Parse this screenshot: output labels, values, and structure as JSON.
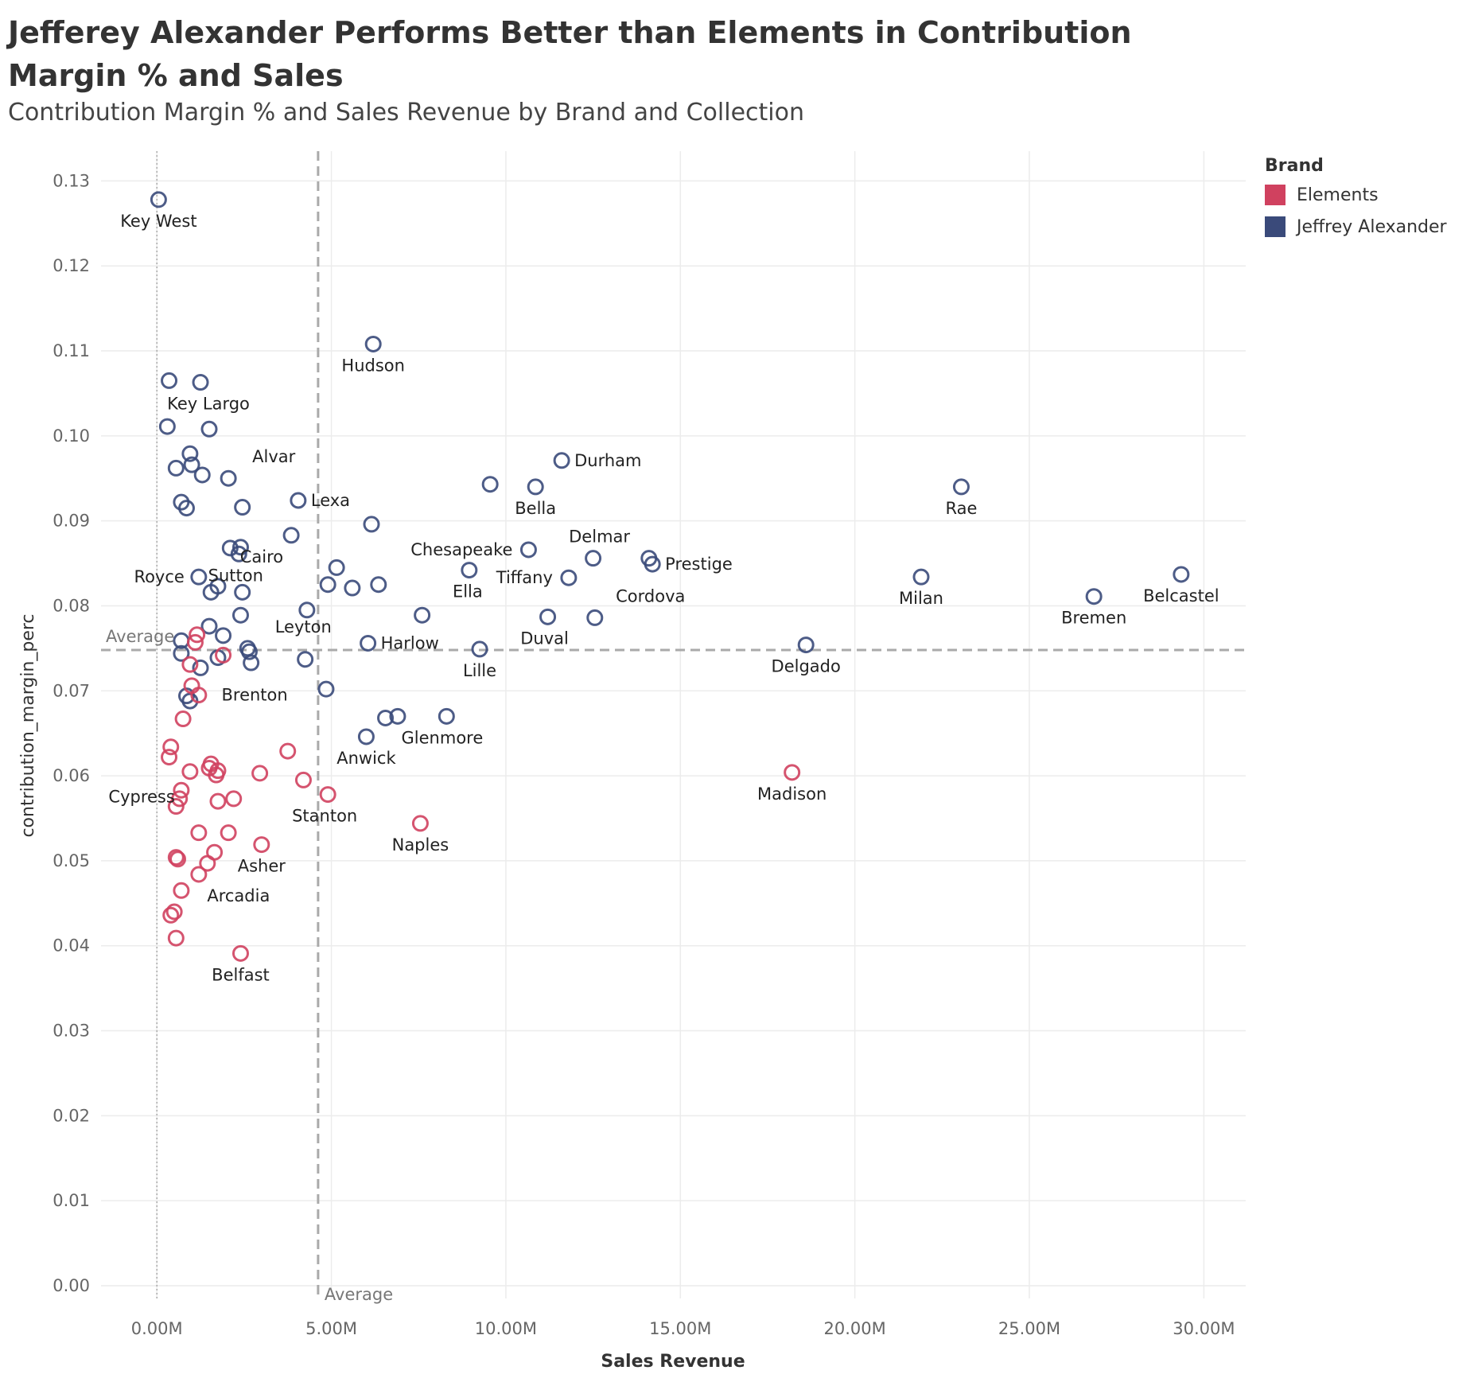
{
  "title": "Jefferey Alexander Performs Better than Elements in Contribution Margin % and Sales",
  "subtitle": "Contribution Margin % and Sales Revenue by Brand and Collection",
  "legend": {
    "title": "Brand",
    "items": [
      {
        "name": "Elements",
        "color": "#d0415f"
      },
      {
        "name": "Jeffrey Alexander",
        "color": "#3a4a7a"
      }
    ]
  },
  "chart_data": {
    "type": "scatter",
    "xlabel": "Sales Revenue",
    "ylabel": "contribution_margin_perc",
    "xlim": [
      -1600000,
      31200000
    ],
    "ylim": [
      -0.0015,
      0.1335
    ],
    "x_ticks": [
      0,
      5000000,
      10000000,
      15000000,
      20000000,
      25000000,
      30000000
    ],
    "x_tick_labels": [
      "0.00M",
      "5.00M",
      "10.00M",
      "15.00M",
      "20.00M",
      "25.00M",
      "30.00M"
    ],
    "y_ticks": [
      0,
      0.01,
      0.02,
      0.03,
      0.04,
      0.05,
      0.06,
      0.07,
      0.08,
      0.09,
      0.1,
      0.11,
      0.12,
      0.13
    ],
    "y_tick_labels": [
      "0.00",
      "0.01",
      "0.02",
      "0.03",
      "0.04",
      "0.05",
      "0.06",
      "0.07",
      "0.08",
      "0.09",
      "0.10",
      "0.11",
      "0.12",
      "0.13"
    ],
    "reference_lines": {
      "x_average": 4620000,
      "y_average": 0.0748,
      "label": "Average"
    },
    "grid": true,
    "legend_position": "right",
    "series": [
      {
        "name": "Jeffrey Alexander",
        "color": "#3a4a7a",
        "points": [
          {
            "x": 50000,
            "y": 0.1278,
            "label": "Key West"
          },
          {
            "x": 6200000,
            "y": 0.1108,
            "label": "Hudson"
          },
          {
            "x": 350000,
            "y": 0.1065,
            "label": ""
          },
          {
            "x": 1250000,
            "y": 0.1063,
            "label": "Key Largo"
          },
          {
            "x": 300000,
            "y": 0.1011,
            "label": ""
          },
          {
            "x": 1500000,
            "y": 0.1008,
            "label": ""
          },
          {
            "x": 950000,
            "y": 0.0979,
            "label": ""
          },
          {
            "x": 1000000,
            "y": 0.0966,
            "label": ""
          },
          {
            "x": 550000,
            "y": 0.0962,
            "label": ""
          },
          {
            "x": 1300000,
            "y": 0.0954,
            "label": ""
          },
          {
            "x": 2050000,
            "y": 0.095,
            "label": "Alvar"
          },
          {
            "x": 11600000,
            "y": 0.0971,
            "label": "Durham"
          },
          {
            "x": 9550000,
            "y": 0.0943,
            "label": ""
          },
          {
            "x": 10850000,
            "y": 0.094,
            "label": "Bella"
          },
          {
            "x": 23050000,
            "y": 0.094,
            "label": "Rae"
          },
          {
            "x": 4050000,
            "y": 0.0924,
            "label": "Lexa"
          },
          {
            "x": 700000,
            "y": 0.0922,
            "label": ""
          },
          {
            "x": 850000,
            "y": 0.0915,
            "label": ""
          },
          {
            "x": 2450000,
            "y": 0.0916,
            "label": ""
          },
          {
            "x": 6150000,
            "y": 0.0896,
            "label": ""
          },
          {
            "x": 3850000,
            "y": 0.0883,
            "label": "Cairo"
          },
          {
            "x": 2100000,
            "y": 0.0868,
            "label": ""
          },
          {
            "x": 2400000,
            "y": 0.0869,
            "label": ""
          },
          {
            "x": 2350000,
            "y": 0.0861,
            "label": "Sutton"
          },
          {
            "x": 10650000,
            "y": 0.0866,
            "label": "Chesapeake"
          },
          {
            "x": 12500000,
            "y": 0.0856,
            "label": "Delmar"
          },
          {
            "x": 14100000,
            "y": 0.0856,
            "label": ""
          },
          {
            "x": 14200000,
            "y": 0.0849,
            "label": "Prestige"
          },
          {
            "x": 5150000,
            "y": 0.0845,
            "label": ""
          },
          {
            "x": 8950000,
            "y": 0.0842,
            "label": "Ella"
          },
          {
            "x": 29350000,
            "y": 0.0837,
            "label": "Belcastel"
          },
          {
            "x": 21900000,
            "y": 0.0834,
            "label": "Milan"
          },
          {
            "x": 1200000,
            "y": 0.0834,
            "label": "Royce"
          },
          {
            "x": 11800000,
            "y": 0.0833,
            "label": "Tiffany"
          },
          {
            "x": 4900000,
            "y": 0.0825,
            "label": ""
          },
          {
            "x": 6350000,
            "y": 0.0825,
            "label": ""
          },
          {
            "x": 1750000,
            "y": 0.0823,
            "label": ""
          },
          {
            "x": 5600000,
            "y": 0.0821,
            "label": ""
          },
          {
            "x": 1550000,
            "y": 0.0816,
            "label": ""
          },
          {
            "x": 2450000,
            "y": 0.0816,
            "label": ""
          },
          {
            "x": 26850000,
            "y": 0.0811,
            "label": "Bremen"
          },
          {
            "x": 4300000,
            "y": 0.0795,
            "label": ""
          },
          {
            "x": 2400000,
            "y": 0.0789,
            "label": ""
          },
          {
            "x": 7600000,
            "y": 0.0789,
            "label": ""
          },
          {
            "x": 11200000,
            "y": 0.0787,
            "label": "Duval"
          },
          {
            "x": 12550000,
            "y": 0.0786,
            "label": "Cordova"
          },
          {
            "x": 1500000,
            "y": 0.0776,
            "label": ""
          },
          {
            "x": 1900000,
            "y": 0.0765,
            "label": ""
          },
          {
            "x": 700000,
            "y": 0.0759,
            "label": ""
          },
          {
            "x": 6050000,
            "y": 0.0756,
            "label": "Harlow"
          },
          {
            "x": 18600000,
            "y": 0.0754,
            "label": "Delgado"
          },
          {
            "x": 9250000,
            "y": 0.0749,
            "label": "Lille"
          },
          {
            "x": 2600000,
            "y": 0.075,
            "label": "Leyton"
          },
          {
            "x": 2650000,
            "y": 0.0746,
            "label": ""
          },
          {
            "x": 700000,
            "y": 0.0744,
            "label": ""
          },
          {
            "x": 1750000,
            "y": 0.0739,
            "label": ""
          },
          {
            "x": 4250000,
            "y": 0.0737,
            "label": ""
          },
          {
            "x": 2700000,
            "y": 0.0733,
            "label": ""
          },
          {
            "x": 1250000,
            "y": 0.0727,
            "label": ""
          },
          {
            "x": 4850000,
            "y": 0.0702,
            "label": ""
          },
          {
            "x": 850000,
            "y": 0.0694,
            "label": ""
          },
          {
            "x": 950000,
            "y": 0.0688,
            "label": ""
          },
          {
            "x": 6550000,
            "y": 0.0668,
            "label": ""
          },
          {
            "x": 6900000,
            "y": 0.067,
            "label": "Glenmore"
          },
          {
            "x": 8300000,
            "y": 0.067,
            "label": ""
          },
          {
            "x": 6000000,
            "y": 0.0646,
            "label": "Anwick"
          }
        ]
      },
      {
        "name": "Elements",
        "color": "#d0415f",
        "points": [
          {
            "x": 1150000,
            "y": 0.0766,
            "label": ""
          },
          {
            "x": 1100000,
            "y": 0.0757,
            "label": ""
          },
          {
            "x": 1900000,
            "y": 0.0742,
            "label": ""
          },
          {
            "x": 950000,
            "y": 0.0731,
            "label": ""
          },
          {
            "x": 1000000,
            "y": 0.0706,
            "label": ""
          },
          {
            "x": 1200000,
            "y": 0.0695,
            "label": ""
          },
          {
            "x": 750000,
            "y": 0.0667,
            "label": "Brenton"
          },
          {
            "x": 400000,
            "y": 0.0634,
            "label": ""
          },
          {
            "x": 3750000,
            "y": 0.0629,
            "label": ""
          },
          {
            "x": 350000,
            "y": 0.0622,
            "label": ""
          },
          {
            "x": 1550000,
            "y": 0.0614,
            "label": ""
          },
          {
            "x": 1500000,
            "y": 0.0609,
            "label": ""
          },
          {
            "x": 1750000,
            "y": 0.0606,
            "label": ""
          },
          {
            "x": 950000,
            "y": 0.0605,
            "label": ""
          },
          {
            "x": 18200000,
            "y": 0.0604,
            "label": "Madison"
          },
          {
            "x": 2950000,
            "y": 0.0603,
            "label": ""
          },
          {
            "x": 1700000,
            "y": 0.0601,
            "label": ""
          },
          {
            "x": 4200000,
            "y": 0.0595,
            "label": ""
          },
          {
            "x": 700000,
            "y": 0.0583,
            "label": ""
          },
          {
            "x": 4900000,
            "y": 0.0578,
            "label": "Stanton"
          },
          {
            "x": 650000,
            "y": 0.0573,
            "label": ""
          },
          {
            "x": 2200000,
            "y": 0.0573,
            "label": ""
          },
          {
            "x": 1750000,
            "y": 0.057,
            "label": ""
          },
          {
            "x": 550000,
            "y": 0.0564,
            "label": ""
          },
          {
            "x": 7550000,
            "y": 0.0544,
            "label": "Naples"
          },
          {
            "x": 1200000,
            "y": 0.0533,
            "label": "Cypress"
          },
          {
            "x": 2050000,
            "y": 0.0533,
            "label": ""
          },
          {
            "x": 3000000,
            "y": 0.0519,
            "label": "Asher"
          },
          {
            "x": 1650000,
            "y": 0.051,
            "label": ""
          },
          {
            "x": 550000,
            "y": 0.0504,
            "label": ""
          },
          {
            "x": 600000,
            "y": 0.0502,
            "label": ""
          },
          {
            "x": 1450000,
            "y": 0.0497,
            "label": ""
          },
          {
            "x": 1200000,
            "y": 0.0484,
            "label": "Arcadia"
          },
          {
            "x": 700000,
            "y": 0.0465,
            "label": ""
          },
          {
            "x": 500000,
            "y": 0.044,
            "label": ""
          },
          {
            "x": 400000,
            "y": 0.0436,
            "label": ""
          },
          {
            "x": 550000,
            "y": 0.0409,
            "label": ""
          },
          {
            "x": 2400000,
            "y": 0.0391,
            "label": "Belfast"
          }
        ]
      }
    ]
  }
}
